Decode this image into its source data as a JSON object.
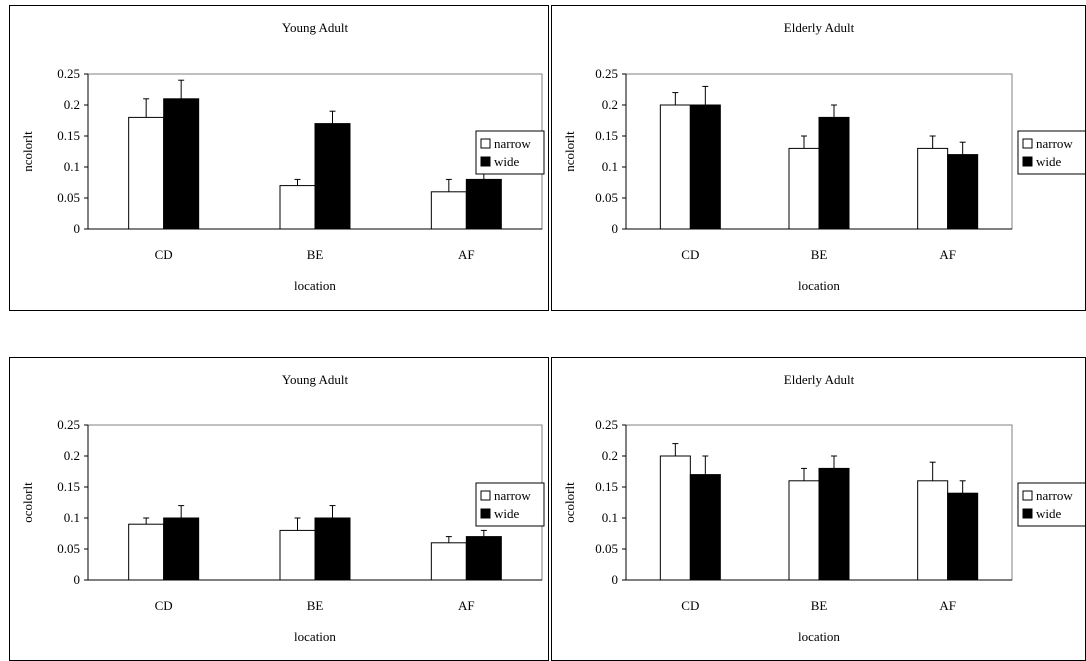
{
  "chart_data": [
    {
      "type": "bar",
      "title": "Young Adult",
      "xlabel": "location",
      "ylabel": "ncolorlt",
      "categories": [
        "CD",
        "BE",
        "AF"
      ],
      "ylim": [
        0,
        0.25
      ],
      "yticks": [
        "0",
        "0.05",
        "0.1",
        "0.15",
        "0.2",
        "0.25"
      ],
      "legend_position": "right",
      "series": [
        {
          "name": "narrow",
          "color": "#ffffff",
          "values": [
            0.18,
            0.07,
            0.06
          ],
          "errors": [
            0.03,
            0.01,
            0.02
          ]
        },
        {
          "name": "wide",
          "color": "#000000",
          "values": [
            0.21,
            0.17,
            0.08
          ],
          "errors": [
            0.03,
            0.02,
            0.02
          ]
        }
      ]
    },
    {
      "type": "bar",
      "title": "Elderly Adult",
      "xlabel": "location",
      "ylabel": "ncolorlt",
      "categories": [
        "CD",
        "BE",
        "AF"
      ],
      "ylim": [
        0,
        0.25
      ],
      "yticks": [
        "0",
        "0.05",
        "0.1",
        "0.15",
        "0.2",
        "0.25"
      ],
      "legend_position": "right",
      "series": [
        {
          "name": "narrow",
          "color": "#ffffff",
          "values": [
            0.2,
            0.13,
            0.13
          ],
          "errors": [
            0.02,
            0.02,
            0.02
          ]
        },
        {
          "name": "wide",
          "color": "#000000",
          "values": [
            0.2,
            0.18,
            0.12
          ],
          "errors": [
            0.03,
            0.02,
            0.02
          ]
        }
      ]
    },
    {
      "type": "bar",
      "title": "Young Adult",
      "xlabel": "location",
      "ylabel": "ocolorlt",
      "categories": [
        "CD",
        "BE",
        "AF"
      ],
      "ylim": [
        0,
        0.25
      ],
      "yticks": [
        "0",
        "0.05",
        "0.1",
        "0.15",
        "0.2",
        "0.25"
      ],
      "legend_position": "right",
      "series": [
        {
          "name": "narrow",
          "color": "#ffffff",
          "values": [
            0.09,
            0.08,
            0.06
          ],
          "errors": [
            0.01,
            0.02,
            0.01
          ]
        },
        {
          "name": "wide",
          "color": "#000000",
          "values": [
            0.1,
            0.1,
            0.07
          ],
          "errors": [
            0.02,
            0.02,
            0.01
          ]
        }
      ]
    },
    {
      "type": "bar",
      "title": "Elderly Adult",
      "xlabel": "location",
      "ylabel": "ocolorlt",
      "categories": [
        "CD",
        "BE",
        "AF"
      ],
      "ylim": [
        0,
        0.25
      ],
      "yticks": [
        "0",
        "0.05",
        "0.1",
        "0.15",
        "0.2",
        "0.25"
      ],
      "legend_position": "right",
      "series": [
        {
          "name": "narrow",
          "color": "#ffffff",
          "values": [
            0.2,
            0.16,
            0.16
          ],
          "errors": [
            0.02,
            0.02,
            0.03
          ]
        },
        {
          "name": "wide",
          "color": "#000000",
          "values": [
            0.17,
            0.18,
            0.14
          ],
          "errors": [
            0.03,
            0.02,
            0.02
          ]
        }
      ]
    }
  ]
}
